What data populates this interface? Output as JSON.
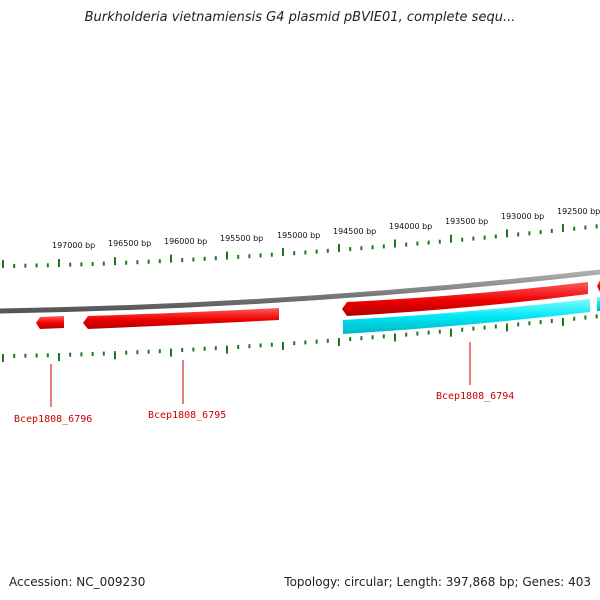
{
  "title": "Burkholderia vietnamiensis G4 plasmid pBVIE01, complete sequ...",
  "footer": {
    "accession": "Accession: NC_009230",
    "summary": "Topology: circular; Length: 397,868 bp; Genes: 403"
  },
  "scale_ticks": [
    "197000 bp",
    "196500 bp",
    "196000 bp",
    "195500 bp",
    "195000 bp",
    "194500 bp",
    "194000 bp",
    "193500 bp",
    "193000 bp",
    "192500 bp"
  ],
  "genes": [
    {
      "label": "Bcep1808_6796",
      "strand": "forward",
      "color": "#ff0000"
    },
    {
      "label": "Bcep1808_6795",
      "strand": "forward",
      "color": "#ff0000"
    },
    {
      "label": "Bcep1808_6794",
      "strand": "forward",
      "color": "#ff0000"
    }
  ],
  "colors": {
    "backbone": "#8c8c8c",
    "gene_forward": "#ff0000",
    "cds_feature": "#00e5f0",
    "tick": "#1a7a1a",
    "label": "#cc0000"
  }
}
